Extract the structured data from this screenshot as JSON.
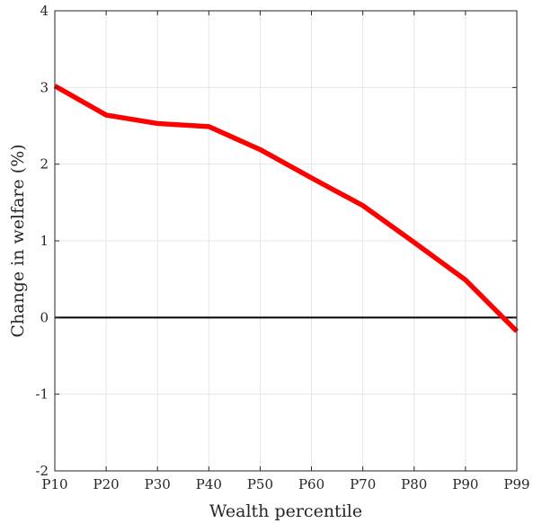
{
  "chart_data": {
    "type": "line",
    "title": "",
    "xlabel": "Wealth percentile",
    "ylabel": "Change in welfare (%)",
    "categories": [
      "P10",
      "P20",
      "P30",
      "P40",
      "P50",
      "P60",
      "P70",
      "P80",
      "P90",
      "P99"
    ],
    "series": [
      {
        "color": "#ff0000",
        "values": [
          3.02,
          2.64,
          2.53,
          2.49,
          2.19,
          1.82,
          1.46,
          0.98,
          0.49,
          -0.18
        ]
      }
    ],
    "reference_line": {
      "y": 0,
      "color": "#000000"
    },
    "ylim": [
      -2,
      4
    ],
    "yticks": [
      "-2",
      "-1",
      "0",
      "1",
      "2",
      "3",
      "4"
    ],
    "grid": true,
    "box": true
  }
}
